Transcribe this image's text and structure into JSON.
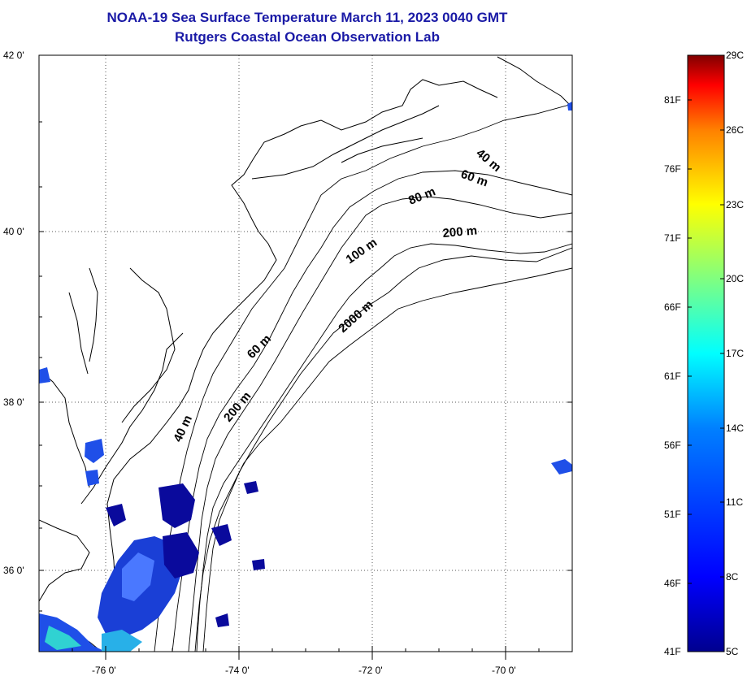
{
  "title": {
    "line1": "NOAA-19 Sea Surface Temperature March 11, 2023 0040 GMT",
    "line2": "Rutgers Coastal Ocean Observation Lab"
  },
  "map": {
    "lat_ticks": [
      "42 0'",
      "40 0'",
      "38 0'",
      "36 0'"
    ],
    "lon_ticks": [
      "-76 0'",
      "-74 0'",
      "-72 0'",
      "-70 0'"
    ],
    "lon_range": [
      -77,
      -69
    ],
    "lat_range": [
      35,
      42
    ],
    "grid": "dotted",
    "contour_labels": {
      "c40_north": "40 m",
      "c60_north": "60 m",
      "c80": "80 m",
      "c200_north": "200 m",
      "c100": "100 m",
      "c2000": "2000 m",
      "c60_south": "60 m",
      "c200_south": "200 m",
      "c40_south": "40 m"
    }
  },
  "colorbar": {
    "celsius_labels": [
      "29C",
      "26C",
      "23C",
      "20C",
      "17C",
      "14C",
      "11C",
      "8C",
      "5C"
    ],
    "fahrenheit_labels": [
      "81F",
      "76F",
      "71F",
      "66F",
      "61F",
      "56F",
      "51F",
      "46F",
      "41F"
    ],
    "celsius_range": [
      5,
      29
    ],
    "colors": [
      "#00008f",
      "#0000ff",
      "#0080ff",
      "#00ffff",
      "#80ff80",
      "#ffff00",
      "#ff8000",
      "#ff0000",
      "#800000"
    ]
  }
}
